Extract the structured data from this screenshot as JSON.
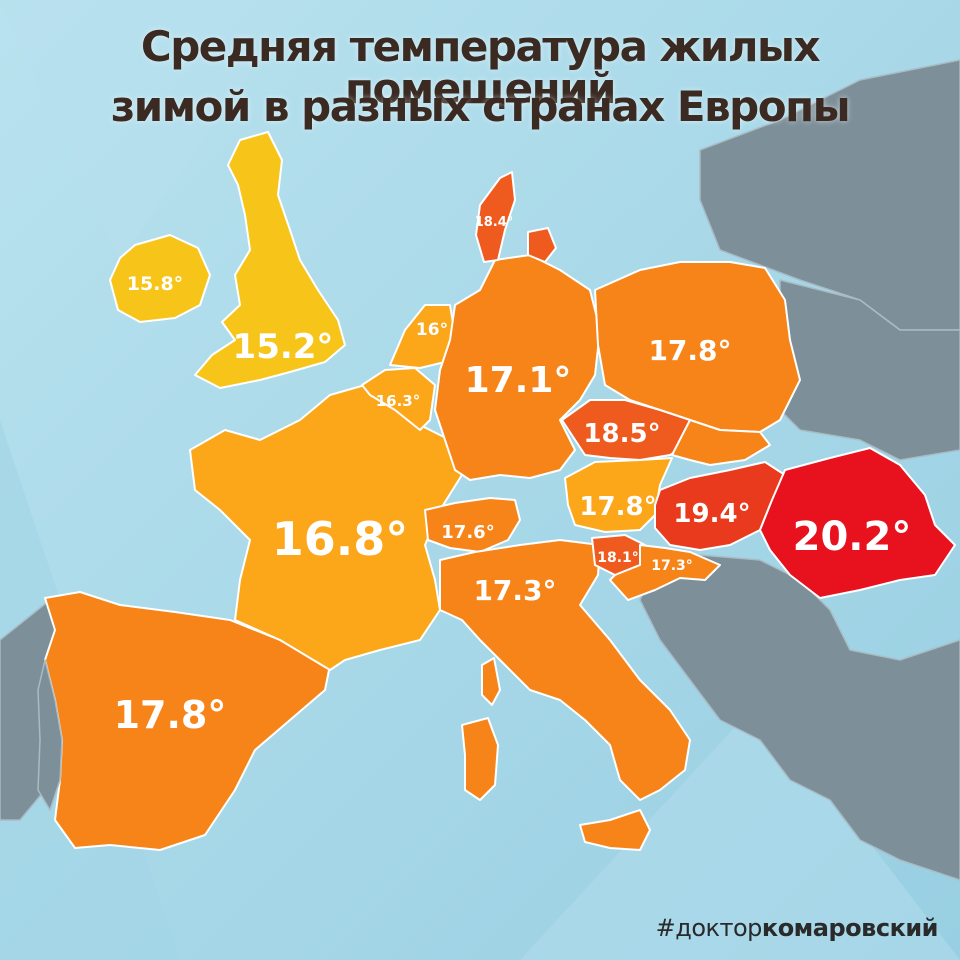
{
  "title": {
    "line1": "Средняя температура жилых помещений",
    "line2": "зимой в разных странах Европы"
  },
  "hashtag": {
    "prefix": "#доктор",
    "bold": "комаровский"
  },
  "colors": {
    "sea": "#a9d8e8",
    "background_land": "#7d8f99",
    "yellow": "#f7c51a",
    "light_orange": "#fca619",
    "orange": "#f78418",
    "dark_orange": "#ef5a1e",
    "red_orange": "#ea3a1e",
    "red": "#e8111e"
  },
  "countries": [
    {
      "name": "Ирландия",
      "value": "15.8°"
    },
    {
      "name": "Великобритания",
      "value": "15.2°"
    },
    {
      "name": "Нидерланды",
      "value": "16°"
    },
    {
      "name": "Бельгия",
      "value": "16.3°"
    },
    {
      "name": "Франция",
      "value": "16.8°"
    },
    {
      "name": "Испания",
      "value": "17.8°"
    },
    {
      "name": "Германия",
      "value": "17.1°"
    },
    {
      "name": "Дания",
      "value": "18.4°"
    },
    {
      "name": "Польша",
      "value": "17.8°"
    },
    {
      "name": "Чехия",
      "value": "18.5°"
    },
    {
      "name": "Австрия",
      "value": "17.8°"
    },
    {
      "name": "Швейцария",
      "value": "17.6°"
    },
    {
      "name": "Италия",
      "value": "17.3°"
    },
    {
      "name": "Словения",
      "value": "18.1°"
    },
    {
      "name": "Хорватия",
      "value": "17.3°"
    },
    {
      "name": "Венгрия",
      "value": "19.4°"
    },
    {
      "name": "Румыния",
      "value": "20.2°"
    }
  ]
}
